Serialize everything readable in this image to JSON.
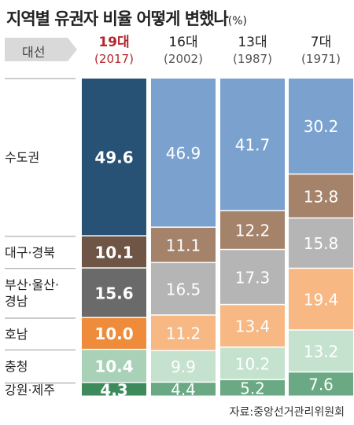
{
  "title": "지역별 유권자 비율 어떻게 변했나",
  "unit": "(%)",
  "header_tag": "대선",
  "source": "자료:중앙선거관리위원회",
  "columns": [
    {
      "era": "19대",
      "year": "(2017)",
      "highlight": true
    },
    {
      "era": "16대",
      "year": "(2002)",
      "highlight": false
    },
    {
      "era": "13대",
      "year": "(1987)",
      "highlight": false
    },
    {
      "era": "7대",
      "year": "(1971)",
      "highlight": false
    }
  ],
  "row_labels": [
    [
      "수도권"
    ],
    [
      "대구·경북"
    ],
    [
      "부산·울산·",
      "경남"
    ],
    [
      "호남"
    ],
    [
      "충청"
    ],
    [
      "강원·제주"
    ]
  ],
  "colors": {
    "highlight_text": "#b3282d",
    "seoul_19": "#275276",
    "daegu_19": "#6f5545",
    "busan_19": "#6a6a6a",
    "honam_19": "#ee8c3c",
    "chungcheong_19": "#a9d1b8",
    "gangwon_19": "#3d8a5c",
    "seoul": "#7ba2cf",
    "daegu": "#a5826a",
    "busan": "#b5b5b5",
    "honam": "#f7b884",
    "chungcheong": "#c5e2cf",
    "gangwon": "#6aa984"
  },
  "chart_data": {
    "type": "bar",
    "stacked": true,
    "categories": [
      "19대 (2017)",
      "16대 (2002)",
      "13대 (1987)",
      "7대 (1971)"
    ],
    "series": [
      {
        "name": "수도권",
        "values": [
          49.6,
          46.9,
          41.7,
          30.2
        ]
      },
      {
        "name": "대구·경북",
        "values": [
          10.1,
          11.1,
          12.2,
          13.8
        ]
      },
      {
        "name": "부산·울산·경남",
        "values": [
          15.6,
          16.5,
          17.3,
          15.8
        ]
      },
      {
        "name": "호남",
        "values": [
          10.0,
          11.2,
          13.4,
          19.4
        ]
      },
      {
        "name": "충청",
        "values": [
          10.4,
          9.9,
          10.2,
          13.2
        ]
      },
      {
        "name": "강원·제주",
        "values": [
          4.3,
          4.4,
          5.2,
          7.6
        ]
      }
    ],
    "labels": [
      [
        "49.6",
        "46.9",
        "41.7",
        "30.2"
      ],
      [
        "10.1",
        "11.1",
        "12.2",
        "13.8"
      ],
      [
        "15.6",
        "16.5",
        "17.3",
        "15.8"
      ],
      [
        "10.0",
        "11.2",
        "13.4",
        "19.4"
      ],
      [
        "10.4",
        "9.9",
        "10.2",
        "13.2"
      ],
      [
        "4.3",
        "4.4",
        "5.2",
        "7.6"
      ]
    ],
    "title": "지역별 유권자 비율 어떻게 변했나",
    "ylabel": "",
    "xlabel": ""
  }
}
